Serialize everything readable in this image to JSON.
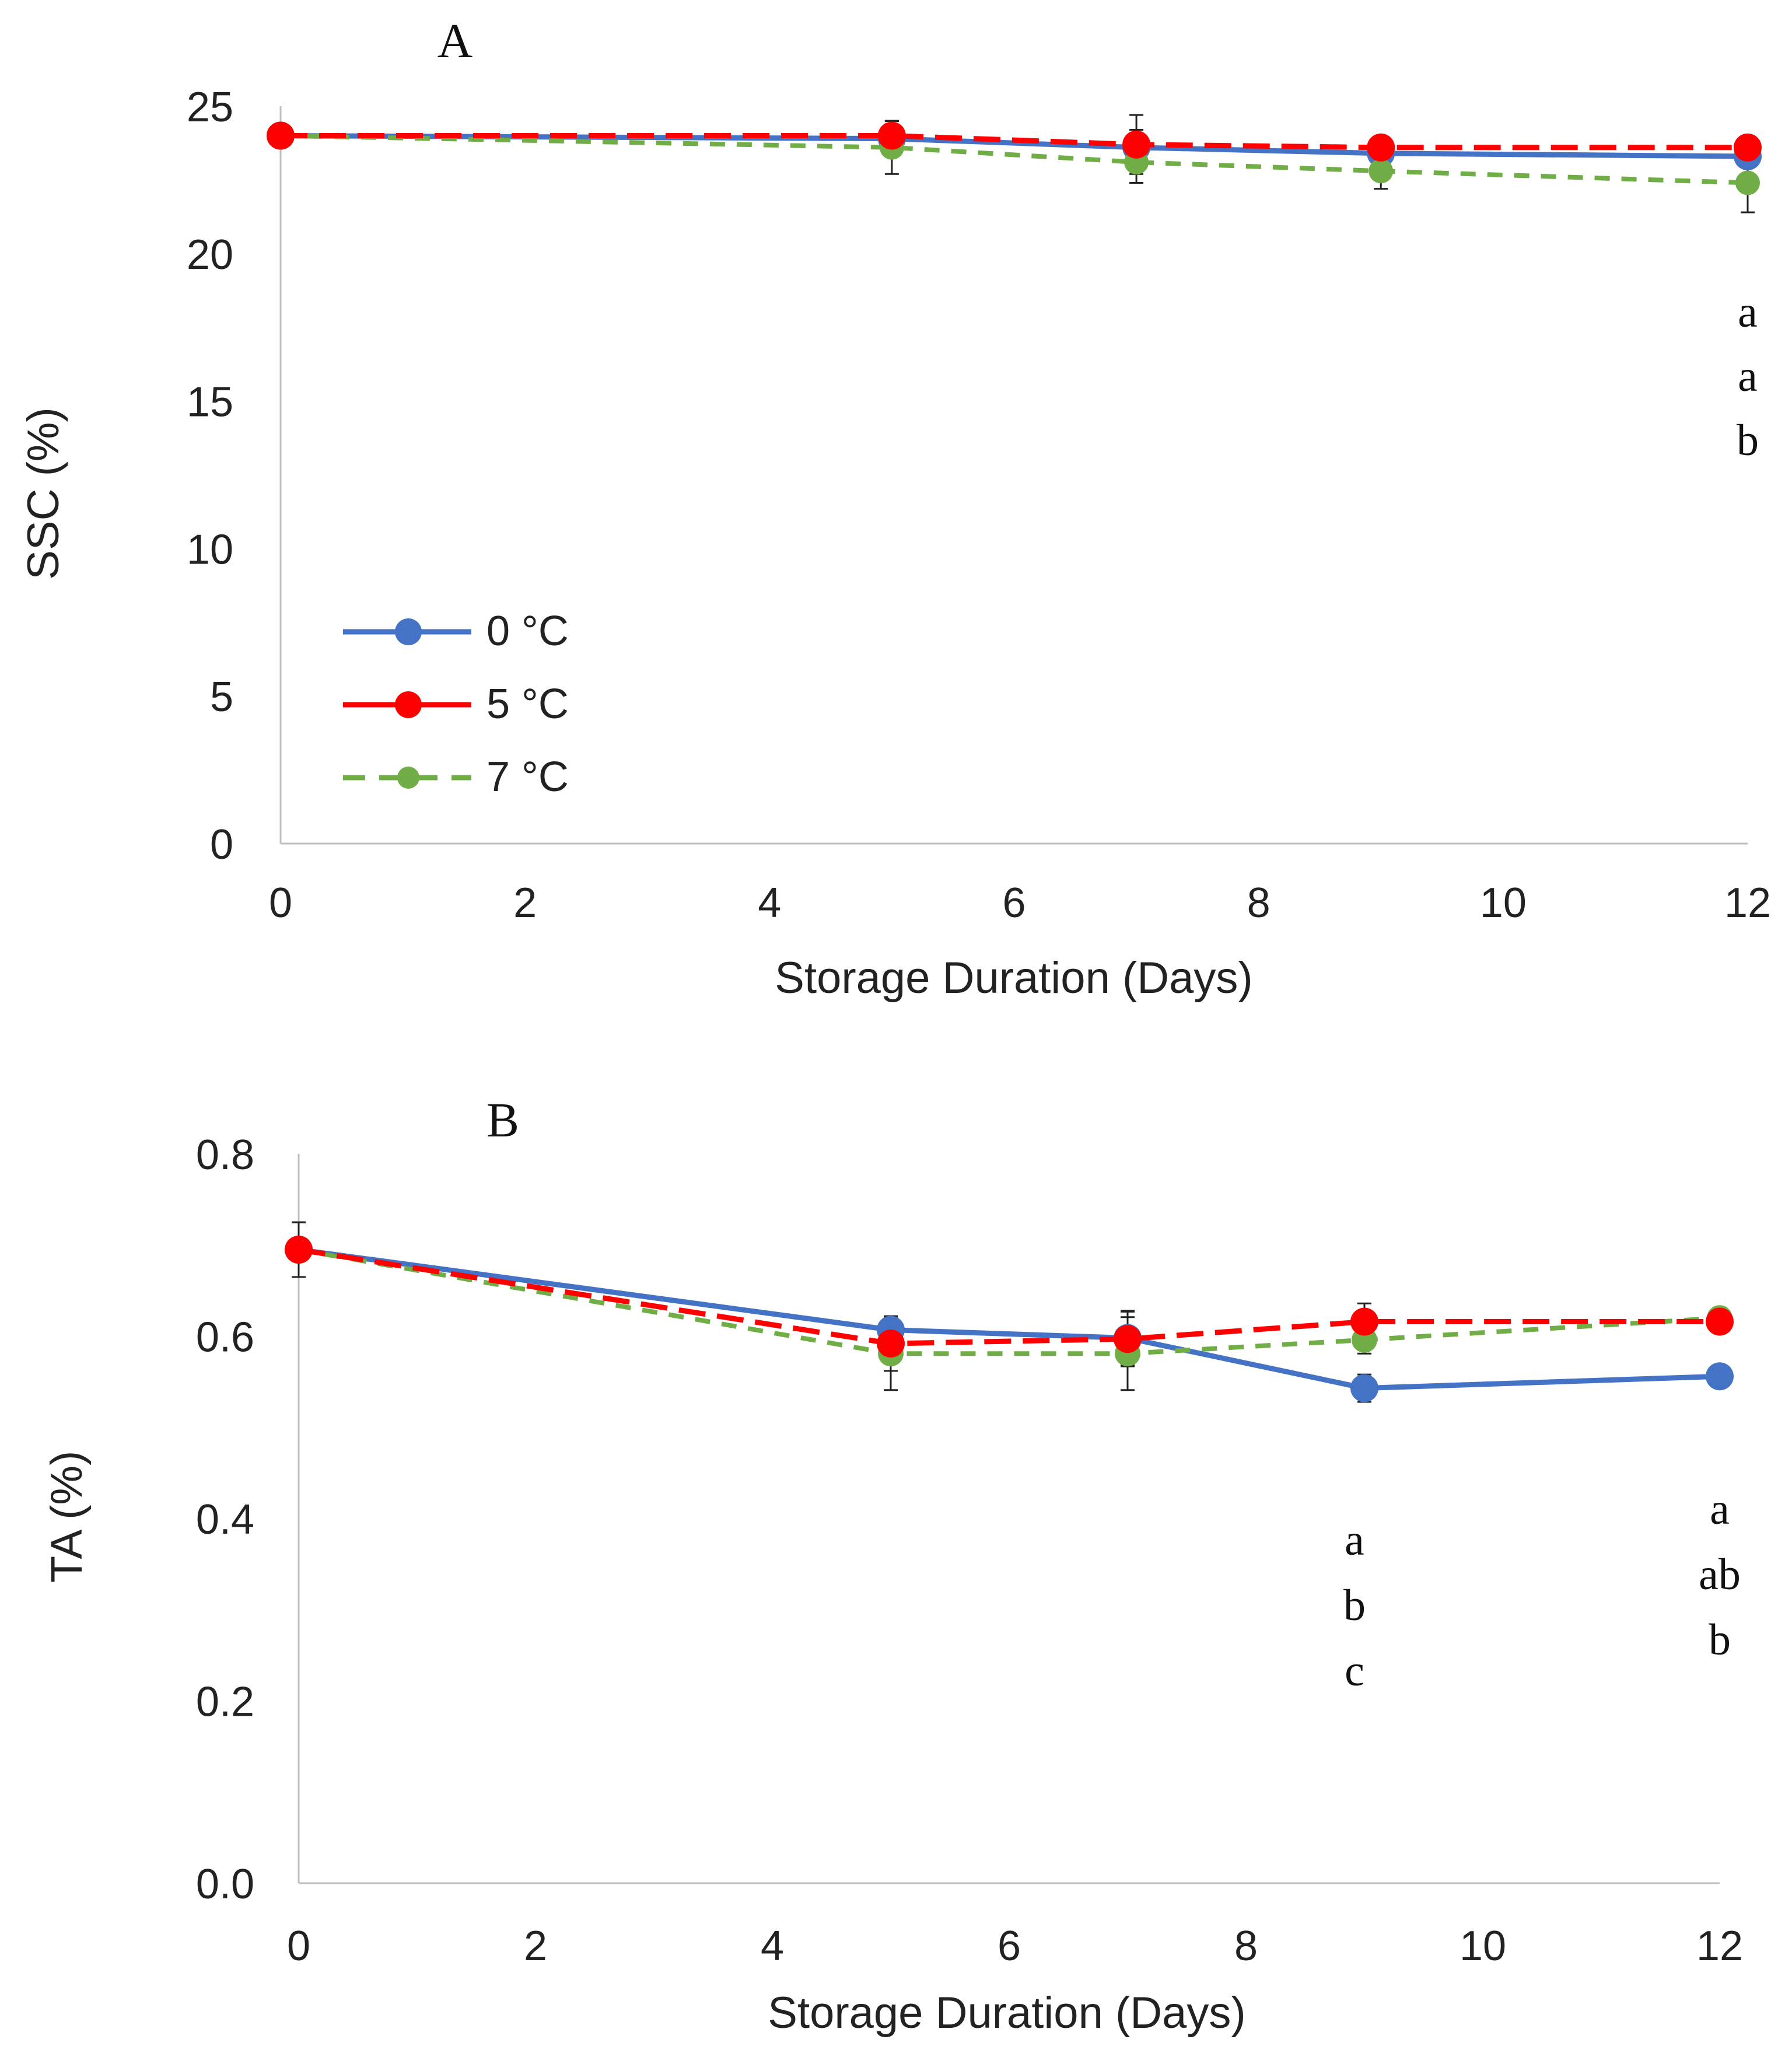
{
  "chart_data": [
    {
      "type": "line",
      "panel_label": "A",
      "xlabel": "Storage Duration (Days)",
      "ylabel": "SSC (%)",
      "xlim": [
        0,
        12
      ],
      "ylim": [
        0,
        25
      ],
      "xticks": [
        "0",
        "2",
        "4",
        "6",
        "8",
        "10",
        "12"
      ],
      "yticks": [
        "0",
        "5",
        "10",
        "15",
        "20",
        "25"
      ],
      "x": [
        0,
        5,
        7,
        9,
        12
      ],
      "series": [
        {
          "name": "0 °C",
          "color": "#4472C4",
          "dash": "solid",
          "values": [
            24.0,
            23.9,
            23.6,
            23.4,
            23.3
          ],
          "errors": [
            0.1,
            0.6,
            0.6,
            0.3,
            0.3
          ]
        },
        {
          "name": "5 °C",
          "color": "#FF0000",
          "dash": "long-dash",
          "values": [
            24.0,
            24.0,
            23.7,
            23.6,
            23.6
          ],
          "errors": [
            0.1,
            0.5,
            1.0,
            0.3,
            0.3
          ]
        },
        {
          "name": "7 °C",
          "color": "#70AD47",
          "dash": "short-dash",
          "values": [
            24.0,
            23.6,
            23.1,
            22.8,
            22.4
          ],
          "errors": [
            0.1,
            0.9,
            0.7,
            0.6,
            1.0
          ]
        }
      ],
      "legend": {
        "position": "lower-left",
        "entries": [
          "0 °C",
          "5 °C",
          "7 °C"
        ]
      },
      "annotations": [
        {
          "x": 12,
          "letters": [
            "a",
            "a",
            "b"
          ]
        }
      ]
    },
    {
      "type": "line",
      "panel_label": "B",
      "xlabel": "Storage Duration (Days)",
      "ylabel": "TA (%)",
      "xlim": [
        0,
        12
      ],
      "ylim": [
        0,
        0.8
      ],
      "xticks": [
        "0",
        "2",
        "4",
        "6",
        "8",
        "10",
        "12"
      ],
      "yticks": [
        "0.0",
        "0.2",
        "0.4",
        "0.6",
        "0.8"
      ],
      "x": [
        0,
        5,
        7,
        9,
        12
      ],
      "series": [
        {
          "name": "0 °C",
          "color": "#4472C4",
          "dash": "solid",
          "values": [
            0.695,
            0.607,
            0.598,
            0.543,
            0.556
          ],
          "errors": [
            0.03,
            0.01,
            0.03,
            0.015,
            0.005
          ]
        },
        {
          "name": "5 °C",
          "color": "#FF0000",
          "dash": "long-dash",
          "values": [
            0.695,
            0.592,
            0.597,
            0.616,
            0.616
          ],
          "errors": [
            0.03,
            0.03,
            0.03,
            0.02,
            0.005
          ]
        },
        {
          "name": "7 °C",
          "color": "#70AD47",
          "dash": "short-dash",
          "values": [
            0.695,
            0.581,
            0.581,
            0.596,
            0.62
          ],
          "errors": [
            0.03,
            0.04,
            0.04,
            0.015,
            0.005
          ]
        }
      ],
      "annotations": [
        {
          "x": 9,
          "letters": [
            "a",
            "b",
            "c"
          ]
        },
        {
          "x": 12,
          "letters": [
            "a",
            "ab",
            "b"
          ]
        }
      ]
    }
  ]
}
